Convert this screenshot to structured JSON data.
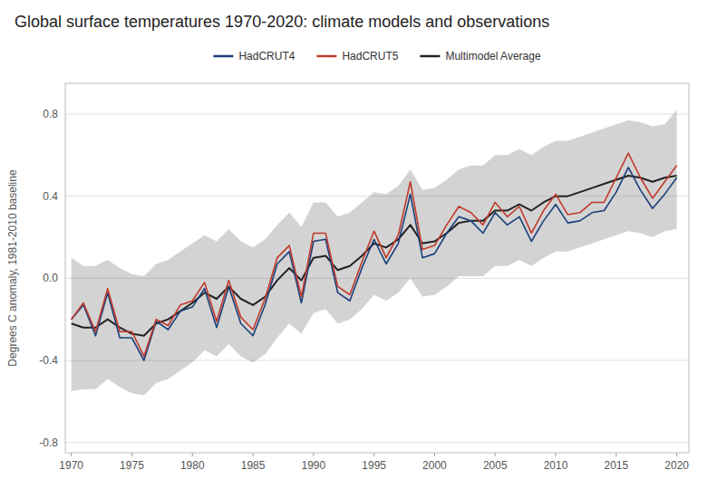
{
  "chart_data": {
    "type": "line",
    "title": "Global surface temperatures 1970-2020: climate models and observations",
    "y_label": "Degrees C anomaly, 1981-2010 baseline",
    "x": [
      1970,
      1971,
      1972,
      1973,
      1974,
      1975,
      1976,
      1977,
      1978,
      1979,
      1980,
      1981,
      1982,
      1983,
      1984,
      1985,
      1986,
      1987,
      1988,
      1989,
      1990,
      1991,
      1992,
      1993,
      1994,
      1995,
      1996,
      1997,
      1998,
      1999,
      2000,
      2001,
      2002,
      2003,
      2004,
      2005,
      2006,
      2007,
      2008,
      2009,
      2010,
      2011,
      2012,
      2013,
      2014,
      2015,
      2016,
      2017,
      2018,
      2019,
      2020
    ],
    "xlim": [
      1969.5,
      2021.0
    ],
    "ylim": [
      -0.85,
      0.95
    ],
    "xticks": [
      1970,
      1975,
      1980,
      1985,
      1990,
      1995,
      2000,
      2005,
      2010,
      2015,
      2020
    ],
    "yticks": [
      -0.8,
      -0.4,
      {
        "value": 0.0,
        "label": "0.0"
      },
      0.4,
      0.8
    ],
    "grid": true,
    "legend": "top",
    "series": [
      {
        "name": "HadCRUT4",
        "color": "#1a3f7a",
        "values": [
          -0.2,
          -0.13,
          -0.28,
          -0.07,
          -0.29,
          -0.29,
          -0.4,
          -0.21,
          -0.25,
          -0.16,
          -0.14,
          -0.05,
          -0.24,
          -0.04,
          -0.22,
          -0.28,
          -0.13,
          0.07,
          0.13,
          -0.12,
          0.18,
          0.19,
          -0.07,
          -0.11,
          0.05,
          0.19,
          0.07,
          0.17,
          0.41,
          0.1,
          0.12,
          0.22,
          0.3,
          0.28,
          0.22,
          0.32,
          0.26,
          0.3,
          0.18,
          0.28,
          0.36,
          0.27,
          0.28,
          0.32,
          0.33,
          0.42,
          0.54,
          0.43,
          0.34,
          0.41,
          0.49
        ]
      },
      {
        "name": "HadCRUT5",
        "color": "#c0392b",
        "values": [
          -0.2,
          -0.12,
          -0.26,
          -0.05,
          -0.26,
          -0.26,
          -0.38,
          -0.2,
          -0.23,
          -0.13,
          -0.11,
          -0.02,
          -0.21,
          -0.01,
          -0.19,
          -0.25,
          -0.1,
          0.1,
          0.16,
          -0.09,
          0.22,
          0.22,
          -0.04,
          -0.08,
          0.08,
          0.23,
          0.1,
          0.21,
          0.47,
          0.14,
          0.16,
          0.26,
          0.35,
          0.32,
          0.26,
          0.37,
          0.3,
          0.35,
          0.22,
          0.33,
          0.41,
          0.31,
          0.32,
          0.37,
          0.37,
          0.49,
          0.61,
          0.49,
          0.39,
          0.47,
          0.55
        ]
      },
      {
        "name": "Multimodel Average",
        "color": "#222222",
        "values": [
          -0.22,
          -0.24,
          -0.24,
          -0.2,
          -0.24,
          -0.27,
          -0.28,
          -0.22,
          -0.2,
          -0.16,
          -0.12,
          -0.07,
          -0.1,
          -0.04,
          -0.1,
          -0.13,
          -0.09,
          -0.01,
          0.05,
          -0.01,
          0.1,
          0.11,
          0.04,
          0.06,
          0.11,
          0.17,
          0.15,
          0.19,
          0.26,
          0.17,
          0.18,
          0.22,
          0.27,
          0.28,
          0.28,
          0.33,
          0.33,
          0.36,
          0.33,
          0.37,
          0.4,
          0.4,
          0.42,
          0.44,
          0.46,
          0.48,
          0.5,
          0.49,
          0.47,
          0.49,
          0.5
        ],
        "upper": [
          0.1,
          0.06,
          0.06,
          0.09,
          0.05,
          0.02,
          0.01,
          0.07,
          0.09,
          0.13,
          0.17,
          0.21,
          0.18,
          0.24,
          0.18,
          0.15,
          0.19,
          0.26,
          0.32,
          0.25,
          0.37,
          0.37,
          0.3,
          0.32,
          0.37,
          0.42,
          0.41,
          0.45,
          0.53,
          0.43,
          0.44,
          0.48,
          0.53,
          0.55,
          0.55,
          0.6,
          0.6,
          0.63,
          0.6,
          0.64,
          0.67,
          0.67,
          0.69,
          0.71,
          0.73,
          0.75,
          0.77,
          0.76,
          0.74,
          0.75,
          0.82
        ],
        "lower": [
          -0.55,
          -0.54,
          -0.54,
          -0.49,
          -0.53,
          -0.56,
          -0.57,
          -0.51,
          -0.49,
          -0.45,
          -0.41,
          -0.35,
          -0.38,
          -0.32,
          -0.38,
          -0.41,
          -0.37,
          -0.29,
          -0.22,
          -0.27,
          -0.17,
          -0.15,
          -0.22,
          -0.2,
          -0.15,
          -0.08,
          -0.11,
          -0.07,
          0.0,
          -0.09,
          -0.08,
          -0.04,
          0.01,
          0.01,
          0.01,
          0.06,
          0.06,
          0.09,
          0.06,
          0.1,
          0.13,
          0.13,
          0.15,
          0.17,
          0.19,
          0.21,
          0.23,
          0.22,
          0.2,
          0.23,
          0.24
        ]
      }
    ]
  }
}
